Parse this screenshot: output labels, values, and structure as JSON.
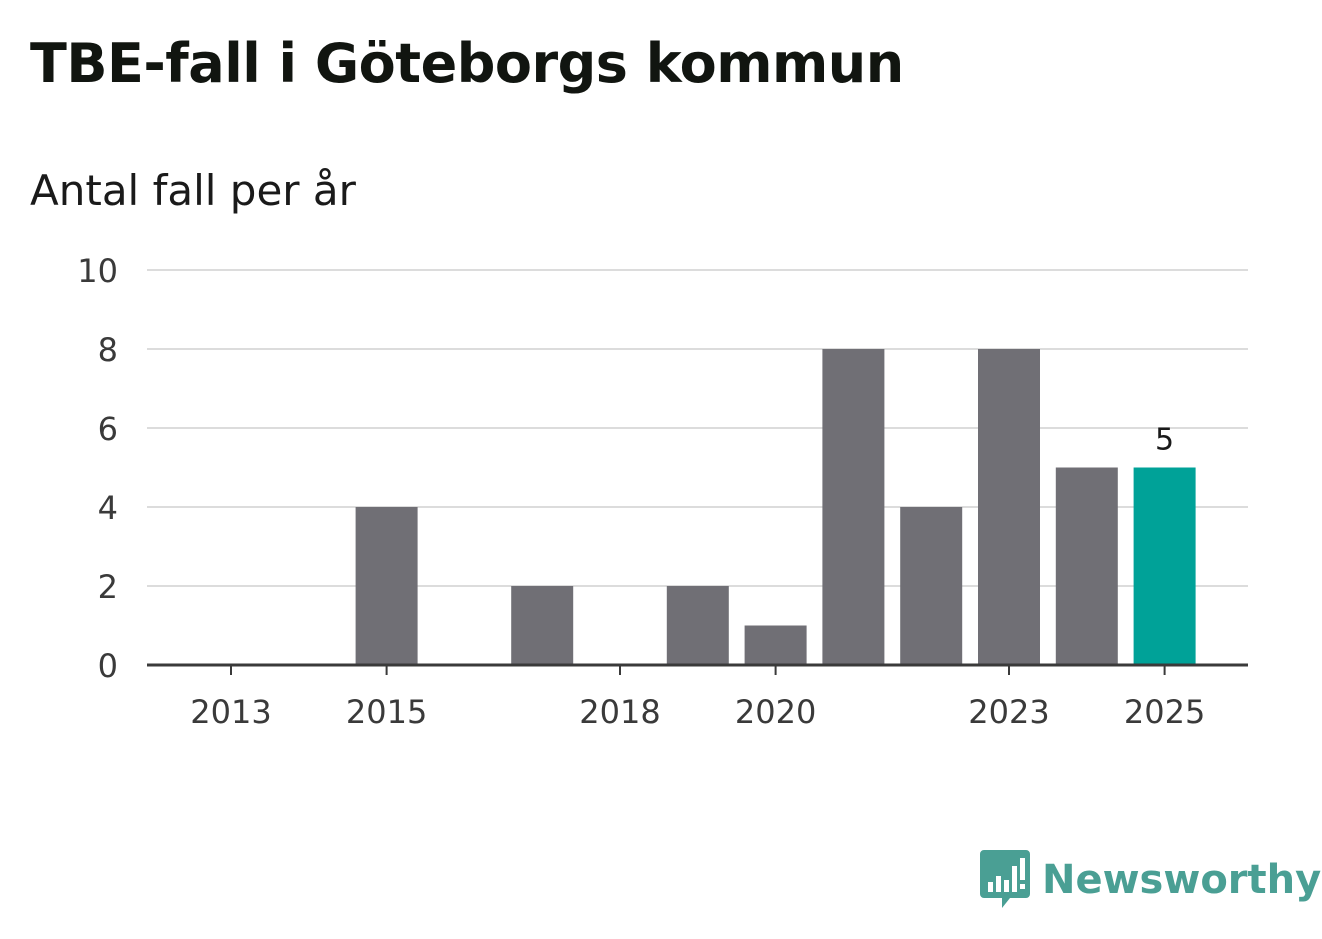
{
  "chart_data": {
    "type": "bar",
    "title": "TBE-fall i Göteborgs kommun",
    "subtitle": "Antal fall per år",
    "categories": [
      "2013",
      "2014",
      "2015",
      "2016",
      "2017",
      "2018",
      "2019",
      "2020",
      "2021",
      "2022",
      "2023",
      "2024",
      "2025"
    ],
    "x_tick_labels": [
      "2013",
      "2015",
      "2018",
      "2020",
      "2023",
      "2025"
    ],
    "values": [
      0,
      0,
      4,
      0,
      2,
      0,
      2,
      1,
      8,
      4,
      8,
      5,
      5
    ],
    "y_ticks": [
      "0",
      "2",
      "4",
      "6",
      "8",
      "10"
    ],
    "ylim": [
      0,
      10
    ],
    "highlight": {
      "category": "2025",
      "label": "5"
    },
    "xlabel": "",
    "ylabel": "",
    "grid": true
  },
  "colors": {
    "bar": "#706f75",
    "highlight": "#00a298",
    "grid": "#dcdcdc",
    "axis": "#3a3a3a",
    "brand": "#4a9f94"
  },
  "brand": {
    "name": "Newsworthy",
    "icon": "bar-chart-speech-bubble-icon"
  }
}
